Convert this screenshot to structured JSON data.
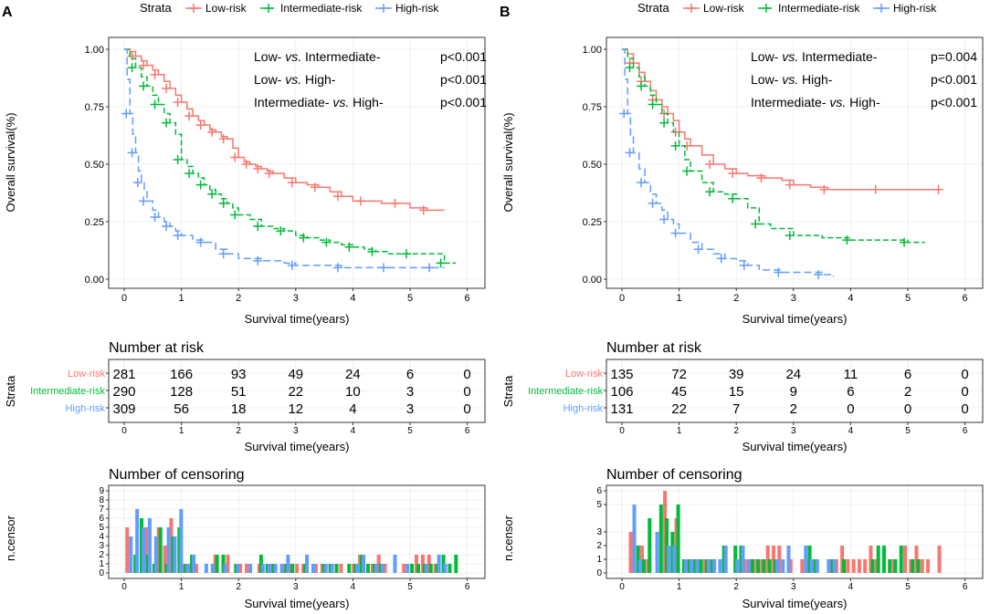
{
  "colors": {
    "low": "#F8766D",
    "intermediate": "#00BA38",
    "high": "#619CFF"
  },
  "legend": {
    "title": "Strata",
    "labels": [
      "Low-risk",
      "Intermediate-risk",
      "High-risk"
    ]
  },
  "panels": [
    {
      "label": "A",
      "ylabel": "Overall survival(%)",
      "xlabel": "Survival time(years)",
      "pvalues": [
        {
          "a": "Low- ",
          "b": "vs.",
          "c": " Intermediate-",
          "p": "p<0.001"
        },
        {
          "a": "Low- ",
          "b": "vs.",
          "c": " High-",
          "p": "p<0.001"
        },
        {
          "a": "Intermediate- ",
          "b": "vs.",
          "c": "  High-",
          "p": "p<0.001"
        }
      ],
      "risk_title": "Number at risk",
      "risk_ylabel": "Strata",
      "censor_title": "Number of censoring",
      "censor_ylabel": "n.censor",
      "risk_table": {
        "times": [
          0,
          1,
          2,
          3,
          4,
          5,
          6
        ],
        "rows": [
          {
            "label": "Low-risk",
            "values": [
              281,
              166,
              93,
              49,
              24,
              6,
              0
            ]
          },
          {
            "label": "Intermediate-risk",
            "values": [
              290,
              128,
              51,
              22,
              10,
              3,
              0
            ]
          },
          {
            "label": "High-risk",
            "values": [
              309,
              56,
              18,
              12,
              4,
              3,
              0
            ]
          }
        ]
      },
      "censor_ticks": [
        "0",
        "1",
        "2",
        "3",
        "4",
        "5",
        "6",
        "7",
        "8",
        "9"
      ]
    },
    {
      "label": "B",
      "ylabel": "Overall survival(%)",
      "xlabel": "Survival time(years)",
      "pvalues": [
        {
          "a": "Low- ",
          "b": "vs.",
          "c": " Intermediate-",
          "p": "p=0.004"
        },
        {
          "a": "Low- ",
          "b": "vs.",
          "c": " High-",
          "p": "p<0.001"
        },
        {
          "a": "Intermediate- ",
          "b": "vs.",
          "c": "  High-",
          "p": "p<0.001"
        }
      ],
      "risk_title": "Number at risk",
      "risk_ylabel": "Strata",
      "censor_title": "Number of censoring",
      "censor_ylabel": "n.censor",
      "risk_table": {
        "times": [
          0,
          1,
          2,
          3,
          4,
          5,
          6
        ],
        "rows": [
          {
            "label": "Low-risk",
            "values": [
              135,
              72,
              39,
              24,
              11,
              6,
              0
            ]
          },
          {
            "label": "Intermediate-risk",
            "values": [
              106,
              45,
              15,
              9,
              6,
              2,
              0
            ]
          },
          {
            "label": "High-risk",
            "values": [
              131,
              22,
              7,
              2,
              0,
              0,
              0
            ]
          }
        ]
      },
      "censor_ticks": [
        "0",
        "1",
        "2",
        "3",
        "5",
        "6"
      ]
    }
  ],
  "chart_data": [
    {
      "type": "line",
      "title": "A",
      "xlabel": "Survival time(years)",
      "ylabel": "Overall survival(%)",
      "xlim": [
        0,
        6
      ],
      "ylim": [
        0,
        1
      ],
      "xticks": [
        "0",
        "1",
        "2",
        "3",
        "4",
        "5",
        "6"
      ],
      "yticks": [
        "0.00",
        "0.25",
        "0.50",
        "0.75",
        "1.00"
      ],
      "series": [
        {
          "name": "Low-risk",
          "x": [
            0,
            0.1,
            0.2,
            0.3,
            0.4,
            0.5,
            0.6,
            0.7,
            0.8,
            0.9,
            1.0,
            1.1,
            1.2,
            1.3,
            1.4,
            1.5,
            1.6,
            1.7,
            1.8,
            1.9,
            2.0,
            2.1,
            2.2,
            2.3,
            2.4,
            2.5,
            2.6,
            2.8,
            3.0,
            3.2,
            3.4,
            3.6,
            3.8,
            4.0,
            4.2,
            4.5,
            4.8,
            5.0,
            5.3,
            5.6
          ],
          "y": [
            1.0,
            0.99,
            0.97,
            0.95,
            0.93,
            0.91,
            0.89,
            0.86,
            0.83,
            0.8,
            0.77,
            0.74,
            0.71,
            0.69,
            0.67,
            0.65,
            0.64,
            0.62,
            0.61,
            0.57,
            0.53,
            0.51,
            0.5,
            0.49,
            0.48,
            0.47,
            0.46,
            0.44,
            0.42,
            0.41,
            0.4,
            0.38,
            0.36,
            0.34,
            0.34,
            0.33,
            0.33,
            0.31,
            0.3,
            0.3
          ]
        },
        {
          "name": "Intermediate-risk",
          "x": [
            0,
            0.1,
            0.2,
            0.3,
            0.4,
            0.5,
            0.6,
            0.7,
            0.8,
            0.9,
            1.0,
            1.1,
            1.2,
            1.3,
            1.4,
            1.5,
            1.6,
            1.7,
            1.8,
            1.9,
            2.0,
            2.2,
            2.4,
            2.6,
            2.8,
            3.0,
            3.2,
            3.4,
            3.6,
            3.8,
            4.0,
            4.2,
            4.4,
            4.6,
            5.0,
            5.3,
            5.6,
            5.8
          ],
          "y": [
            1.0,
            0.96,
            0.92,
            0.88,
            0.84,
            0.8,
            0.76,
            0.72,
            0.68,
            0.63,
            0.52,
            0.49,
            0.46,
            0.44,
            0.41,
            0.39,
            0.37,
            0.35,
            0.33,
            0.31,
            0.28,
            0.26,
            0.23,
            0.22,
            0.21,
            0.19,
            0.18,
            0.17,
            0.16,
            0.15,
            0.14,
            0.13,
            0.12,
            0.11,
            0.11,
            0.11,
            0.07,
            0.07
          ]
        },
        {
          "name": "High-risk",
          "x": [
            0,
            0.05,
            0.1,
            0.15,
            0.2,
            0.25,
            0.3,
            0.35,
            0.4,
            0.5,
            0.6,
            0.7,
            0.8,
            0.9,
            1.0,
            1.2,
            1.4,
            1.6,
            1.8,
            2.0,
            2.4,
            2.8,
            3.0,
            3.4,
            3.8,
            4.2,
            4.6,
            5.0,
            5.4,
            5.6
          ],
          "y": [
            1.0,
            0.87,
            0.72,
            0.63,
            0.55,
            0.47,
            0.42,
            0.38,
            0.34,
            0.3,
            0.27,
            0.25,
            0.23,
            0.21,
            0.19,
            0.17,
            0.16,
            0.13,
            0.11,
            0.09,
            0.08,
            0.07,
            0.06,
            0.06,
            0.05,
            0.05,
            0.05,
            0.05,
            0.05,
            0.05
          ]
        }
      ]
    },
    {
      "type": "line",
      "title": "B",
      "xlabel": "Survival time(years)",
      "ylabel": "Overall survival(%)",
      "xlim": [
        0,
        6
      ],
      "ylim": [
        0,
        1
      ],
      "xticks": [
        "0",
        "1",
        "2",
        "3",
        "4",
        "5",
        "6"
      ],
      "yticks": [
        "0.00",
        "0.25",
        "0.50",
        "0.75",
        "1.00"
      ],
      "series": [
        {
          "name": "Low-risk",
          "x": [
            0,
            0.1,
            0.2,
            0.3,
            0.4,
            0.5,
            0.6,
            0.7,
            0.8,
            0.9,
            1.0,
            1.1,
            1.2,
            1.4,
            1.6,
            1.8,
            2.0,
            2.2,
            2.5,
            2.8,
            3.0,
            3.3,
            3.6,
            4.0,
            4.5,
            5.0,
            5.6
          ],
          "y": [
            1.0,
            0.98,
            0.94,
            0.9,
            0.86,
            0.82,
            0.78,
            0.75,
            0.72,
            0.69,
            0.64,
            0.61,
            0.58,
            0.54,
            0.5,
            0.48,
            0.46,
            0.45,
            0.44,
            0.43,
            0.41,
            0.4,
            0.39,
            0.39,
            0.39,
            0.39,
            0.39
          ]
        },
        {
          "name": "Intermediate-risk",
          "x": [
            0,
            0.1,
            0.2,
            0.3,
            0.4,
            0.5,
            0.6,
            0.7,
            0.8,
            0.9,
            1.0,
            1.1,
            1.2,
            1.4,
            1.6,
            1.8,
            2.0,
            2.2,
            2.4,
            2.6,
            3.0,
            3.5,
            4.0,
            4.5,
            5.0,
            5.3
          ],
          "y": [
            1.0,
            0.96,
            0.92,
            0.88,
            0.84,
            0.8,
            0.76,
            0.72,
            0.68,
            0.64,
            0.58,
            0.52,
            0.47,
            0.42,
            0.38,
            0.37,
            0.35,
            0.31,
            0.24,
            0.22,
            0.19,
            0.18,
            0.17,
            0.17,
            0.16,
            0.16
          ]
        },
        {
          "name": "High-risk",
          "x": [
            0,
            0.05,
            0.1,
            0.15,
            0.2,
            0.3,
            0.4,
            0.5,
            0.6,
            0.7,
            0.8,
            0.9,
            1.0,
            1.2,
            1.4,
            1.6,
            1.8,
            2.0,
            2.2,
            2.4,
            2.8,
            3.2,
            3.5,
            3.7
          ],
          "y": [
            1.0,
            0.87,
            0.72,
            0.62,
            0.55,
            0.48,
            0.42,
            0.37,
            0.33,
            0.3,
            0.26,
            0.24,
            0.2,
            0.16,
            0.13,
            0.11,
            0.09,
            0.08,
            0.06,
            0.04,
            0.03,
            0.03,
            0.02,
            0.01
          ]
        }
      ]
    }
  ]
}
